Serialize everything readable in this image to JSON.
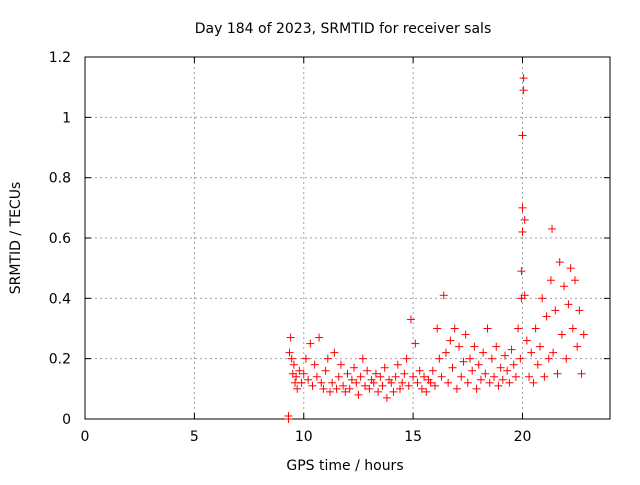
{
  "chart_data": {
    "type": "scatter",
    "title": "Day 184 of 2023, SRMTID for receiver sals",
    "xlabel": "GPS time / hours",
    "ylabel": "SRMTID / TECUs",
    "xlim": [
      0,
      24
    ],
    "ylim": [
      0,
      1.2
    ],
    "xticks": [
      0,
      5,
      10,
      15,
      20
    ],
    "xtick_labels": [
      "0",
      "5",
      "10",
      "15",
      "20"
    ],
    "yticks": [
      0,
      0.2,
      0.4,
      0.6,
      0.8,
      1.0,
      1.2
    ],
    "ytick_labels": [
      "0",
      "0.2",
      "0.4",
      "0.6",
      "0.8",
      "1",
      "1.2"
    ],
    "grid": true,
    "marker": "+",
    "series_color": "#ff0000",
    "series": [
      {
        "name": "SRMTID",
        "x": [
          9.3,
          9.3,
          9.35,
          9.4,
          9.45,
          9.5,
          9.55,
          9.6,
          9.65,
          9.7,
          9.8,
          9.9,
          10.0,
          10.1,
          10.2,
          10.3,
          10.4,
          10.5,
          10.6,
          10.7,
          10.8,
          10.9,
          11.0,
          11.1,
          11.2,
          11.3,
          11.4,
          11.5,
          11.6,
          11.7,
          11.8,
          11.9,
          12.0,
          12.1,
          12.2,
          12.3,
          12.4,
          12.5,
          12.6,
          12.7,
          12.8,
          12.9,
          13.0,
          13.1,
          13.2,
          13.3,
          13.4,
          13.5,
          13.6,
          13.7,
          13.8,
          13.9,
          14.0,
          14.1,
          14.2,
          14.3,
          14.4,
          14.5,
          14.6,
          14.7,
          14.8,
          14.9,
          15.0,
          15.1,
          15.2,
          15.3,
          15.4,
          15.5,
          15.6,
          15.7,
          15.8,
          15.9,
          16.0,
          16.1,
          16.2,
          16.3,
          16.4,
          16.5,
          16.6,
          16.7,
          16.8,
          16.9,
          17.0,
          17.1,
          17.2,
          17.3,
          17.4,
          17.5,
          17.6,
          17.7,
          17.8,
          17.9,
          18.0,
          18.1,
          18.2,
          18.3,
          18.4,
          18.5,
          18.6,
          18.7,
          18.8,
          18.9,
          19.0,
          19.1,
          19.2,
          19.3,
          19.4,
          19.5,
          19.6,
          19.7,
          19.8,
          19.9,
          19.95,
          19.95,
          20.0,
          20.0,
          20.0,
          20.05,
          20.05,
          20.1,
          20.1,
          20.2,
          20.3,
          20.4,
          20.5,
          20.6,
          20.7,
          20.8,
          20.9,
          21.0,
          21.1,
          21.2,
          21.3,
          21.35,
          21.4,
          21.5,
          21.6,
          21.7,
          21.8,
          21.9,
          22.0,
          22.1,
          22.2,
          22.3,
          22.4,
          22.5,
          22.6,
          22.7,
          22.8
        ],
        "y": [
          0.0,
          0.01,
          0.22,
          0.27,
          0.2,
          0.15,
          0.18,
          0.12,
          0.14,
          0.1,
          0.16,
          0.12,
          0.15,
          0.2,
          0.13,
          0.25,
          0.11,
          0.18,
          0.14,
          0.27,
          0.12,
          0.1,
          0.16,
          0.2,
          0.09,
          0.12,
          0.22,
          0.1,
          0.14,
          0.18,
          0.11,
          0.09,
          0.15,
          0.1,
          0.13,
          0.17,
          0.12,
          0.08,
          0.14,
          0.2,
          0.11,
          0.16,
          0.1,
          0.13,
          0.12,
          0.15,
          0.09,
          0.14,
          0.11,
          0.17,
          0.07,
          0.13,
          0.12,
          0.09,
          0.14,
          0.18,
          0.1,
          0.12,
          0.15,
          0.2,
          0.11,
          0.33,
          0.14,
          0.25,
          0.12,
          0.16,
          0.1,
          0.14,
          0.09,
          0.13,
          0.12,
          0.16,
          0.11,
          0.3,
          0.2,
          0.14,
          0.41,
          0.22,
          0.12,
          0.26,
          0.17,
          0.3,
          0.1,
          0.24,
          0.14,
          0.19,
          0.28,
          0.12,
          0.2,
          0.16,
          0.24,
          0.1,
          0.18,
          0.13,
          0.22,
          0.15,
          0.3,
          0.12,
          0.2,
          0.14,
          0.24,
          0.11,
          0.17,
          0.13,
          0.21,
          0.16,
          0.12,
          0.23,
          0.18,
          0.14,
          0.3,
          0.2,
          0.4,
          0.49,
          0.62,
          0.7,
          0.94,
          1.09,
          1.13,
          0.66,
          0.41,
          0.26,
          0.14,
          0.22,
          0.12,
          0.3,
          0.18,
          0.24,
          0.4,
          0.14,
          0.34,
          0.2,
          0.46,
          0.63,
          0.22,
          0.36,
          0.15,
          0.52,
          0.28,
          0.44,
          0.2,
          0.38,
          0.5,
          0.3,
          0.46,
          0.24,
          0.36,
          0.15,
          0.28
        ]
      }
    ]
  }
}
